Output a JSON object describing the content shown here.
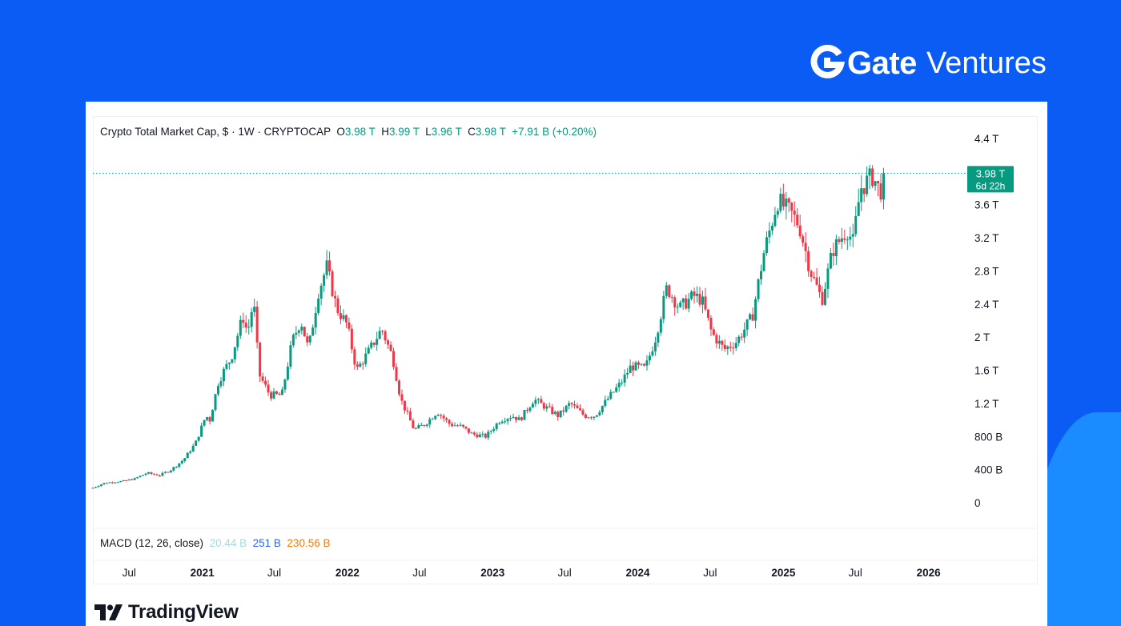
{
  "brand": {
    "name_bold": "Gate",
    "name_light": "Ventures",
    "logo_icon": "gate-g-logo-icon"
  },
  "footer": {
    "tradingview": "TradingView",
    "logo_icon": "tradingview-logo-icon"
  },
  "legend": {
    "symbol": "Crypto Total Market Cap, $ · 1W · CRYPTOCAP",
    "open_label": "O",
    "open": "3.98 T",
    "high_label": "H",
    "high": "3.99 T",
    "low_label": "L",
    "low": "3.96 T",
    "close_label": "C",
    "close": "3.98 T",
    "change": "+7.91 B (+0.20%)"
  },
  "macd": {
    "label": "MACD (12, 26, close)",
    "macd": "20.44 B",
    "signal": "251 B",
    "histogram": "230.56 B"
  },
  "price_tag": {
    "price": "3.98 T",
    "countdown": "6d 22h"
  },
  "colors": {
    "up": "#089981",
    "down": "#f23645",
    "background": "#0a5cf5",
    "accent": "#1a8cff"
  },
  "chart_data": {
    "type": "candlestick",
    "timeframe": "1W",
    "y_axis": {
      "ticks": [
        0,
        400000000000,
        800000000000,
        1200000000000,
        1600000000000,
        2000000000000,
        2400000000000,
        2800000000000,
        3200000000000,
        3600000000000,
        4000000000000,
        4400000000000
      ],
      "tick_labels": [
        "0",
        "400 B",
        "800 B",
        "1.2 T",
        "1.6 T",
        "2 T",
        "2.4 T",
        "2.8 T",
        "3.2 T",
        "3.6 T",
        "",
        "4.4 T"
      ],
      "range": [
        0,
        4400000000000
      ]
    },
    "x_axis": {
      "range": [
        "2020-04-01",
        "2026-02-15"
      ],
      "ticks": [
        {
          "date": "2020-07-01",
          "label": "Jul"
        },
        {
          "date": "2021-01-01",
          "label": "2021"
        },
        {
          "date": "2021-07-01",
          "label": "Jul"
        },
        {
          "date": "2022-01-01",
          "label": "2022"
        },
        {
          "date": "2022-07-01",
          "label": "Jul"
        },
        {
          "date": "2023-01-01",
          "label": "2023"
        },
        {
          "date": "2023-07-01",
          "label": "Jul"
        },
        {
          "date": "2024-01-01",
          "label": "2024"
        },
        {
          "date": "2024-07-01",
          "label": "Jul"
        },
        {
          "date": "2025-01-01",
          "label": "2025"
        },
        {
          "date": "2025-07-01",
          "label": "Jul"
        },
        {
          "date": "2026-01-01",
          "label": "2026"
        }
      ]
    },
    "close_series_T": [
      [
        "2020-04-01",
        0.18
      ],
      [
        "2020-05-01",
        0.24
      ],
      [
        "2020-06-15",
        0.26
      ],
      [
        "2020-07-15",
        0.29
      ],
      [
        "2020-08-15",
        0.36
      ],
      [
        "2020-09-15",
        0.33
      ],
      [
        "2020-10-15",
        0.4
      ],
      [
        "2020-11-15",
        0.52
      ],
      [
        "2020-12-15",
        0.72
      ],
      [
        "2021-01-10",
        1.05
      ],
      [
        "2021-01-20",
        1.0
      ],
      [
        "2021-02-10",
        1.45
      ],
      [
        "2021-02-25",
        1.6
      ],
      [
        "2021-03-15",
        1.75
      ],
      [
        "2021-04-13",
        2.25
      ],
      [
        "2021-04-25",
        2.05
      ],
      [
        "2021-05-10",
        2.45
      ],
      [
        "2021-05-24",
        1.55
      ],
      [
        "2021-06-20",
        1.3
      ],
      [
        "2021-07-20",
        1.3
      ],
      [
        "2021-08-15",
        1.95
      ],
      [
        "2021-09-06",
        2.2
      ],
      [
        "2021-09-25",
        1.85
      ],
      [
        "2021-10-20",
        2.55
      ],
      [
        "2021-11-10",
        2.85
      ],
      [
        "2021-12-05",
        2.35
      ],
      [
        "2021-12-31",
        2.15
      ],
      [
        "2022-01-24",
        1.6
      ],
      [
        "2022-02-20",
        1.8
      ],
      [
        "2022-03-28",
        2.1
      ],
      [
        "2022-04-25",
        1.75
      ],
      [
        "2022-05-15",
        1.25
      ],
      [
        "2022-06-18",
        0.88
      ],
      [
        "2022-07-15",
        0.95
      ],
      [
        "2022-08-15",
        1.1
      ],
      [
        "2022-09-15",
        0.95
      ],
      [
        "2022-10-15",
        0.92
      ],
      [
        "2022-11-10",
        0.83
      ],
      [
        "2022-12-15",
        0.8
      ],
      [
        "2023-01-20",
        1.0
      ],
      [
        "2023-02-20",
        1.05
      ],
      [
        "2023-03-10",
        1.0
      ],
      [
        "2023-04-15",
        1.25
      ],
      [
        "2023-05-15",
        1.15
      ],
      [
        "2023-06-15",
        1.05
      ],
      [
        "2023-07-15",
        1.2
      ],
      [
        "2023-08-20",
        1.05
      ],
      [
        "2023-09-15",
        1.05
      ],
      [
        "2023-10-25",
        1.3
      ],
      [
        "2023-11-20",
        1.45
      ],
      [
        "2023-12-15",
        1.65
      ],
      [
        "2024-01-20",
        1.62
      ],
      [
        "2024-02-15",
        2.0
      ],
      [
        "2024-03-14",
        2.6
      ],
      [
        "2024-04-15",
        2.35
      ],
      [
        "2024-05-20",
        2.5
      ],
      [
        "2024-06-10",
        2.45
      ],
      [
        "2024-07-05",
        2.05
      ],
      [
        "2024-08-05",
        1.85
      ],
      [
        "2024-09-06",
        1.95
      ],
      [
        "2024-10-15",
        2.25
      ],
      [
        "2024-11-12",
        3.0
      ],
      [
        "2024-12-17",
        3.65
      ],
      [
        "2025-01-20",
        3.5
      ],
      [
        "2025-02-10",
        3.35
      ],
      [
        "2025-03-10",
        2.8
      ],
      [
        "2025-04-08",
        2.45
      ],
      [
        "2025-05-05",
        3.05
      ],
      [
        "2025-06-10",
        3.3
      ],
      [
        "2025-06-25",
        3.15
      ],
      [
        "2025-07-14",
        3.8
      ],
      [
        "2025-08-14",
        3.95
      ],
      [
        "2025-09-01",
        3.75
      ],
      [
        "2025-09-15",
        3.98
      ]
    ],
    "last_close_T": 3.98
  }
}
